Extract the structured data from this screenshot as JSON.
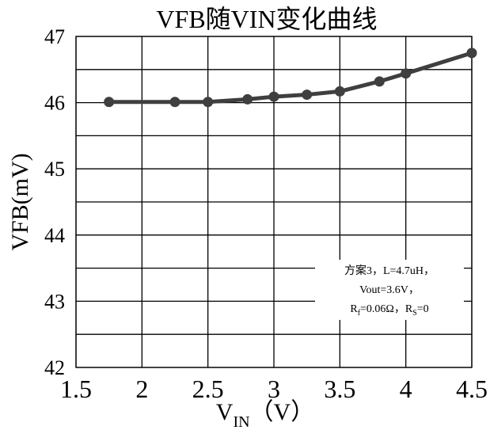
{
  "chart_data": {
    "type": "line",
    "title": "VFB随VIN变化曲线",
    "ylabel": "VFB(mV)",
    "xlabel_main": "V",
    "xlabel_sub": "IN",
    "xlabel_unit": "（V）",
    "xlim": [
      1.5,
      4.5
    ],
    "ylim": [
      42,
      47
    ],
    "x_ticks": [
      "1.5",
      "2",
      "2.5",
      "3",
      "3.5",
      "4",
      "4.5"
    ],
    "y_ticks": [
      "42",
      "43",
      "44",
      "45",
      "46",
      "47"
    ],
    "grid": true,
    "series": [
      {
        "x": [
          1.75,
          2.25,
          2.5,
          2.8,
          3.0,
          3.25,
          3.5,
          3.8,
          4.0,
          4.5
        ],
        "y": [
          46.01,
          46.01,
          46.01,
          46.05,
          46.09,
          46.12,
          46.17,
          46.32,
          46.44,
          46.75
        ]
      }
    ],
    "annotation": {
      "line1": "方案3，L=4.7uH，",
      "line2": "Vout=3.6V，",
      "line3_r": "R",
      "line3_r_sub": "f",
      "line3_mid": "=0.06Ω，R",
      "line3_s_sub": "S",
      "line3_end": "=0"
    }
  },
  "colors": {
    "series": "#3f3f3f",
    "grid": "#000000",
    "background": "#ffffff"
  }
}
